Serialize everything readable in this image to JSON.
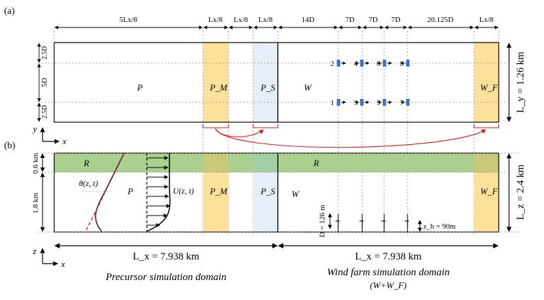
{
  "panel_a": {
    "tag": "(a)",
    "top_dims": [
      "5Lx/8",
      "Lx/8",
      "Lx/8",
      "Lx/8",
      "14D",
      "7D",
      "7D",
      "7D",
      "20.125D",
      "Lx/8"
    ],
    "left_dims": [
      "2.5D",
      "5D",
      "2.5D"
    ],
    "regions": [
      "P",
      "P_M",
      "P_S",
      "W",
      "W_F"
    ],
    "turbines_top": [
      "2",
      "4",
      "6",
      "8"
    ],
    "turbines_bottom": [
      "1",
      "3",
      "5",
      "7"
    ],
    "ly": "L_y = 1.26 km",
    "axes": [
      "y",
      "x"
    ]
  },
  "panel_b": {
    "tag": "(b)",
    "left_dims": [
      "0.6 km",
      "1.8 km"
    ],
    "regions": [
      "R",
      "R",
      "P",
      "P_M",
      "P_S",
      "W",
      "W_F"
    ],
    "theta_label": "θ(z, t)",
    "u_label": "U(z, t)",
    "rotor_d": "D = 126 m",
    "hub_height": "z_h = 90m",
    "lz": "L_z = 2.4 km",
    "axes": [
      "z",
      "x"
    ]
  },
  "bottom": {
    "lx_left": "L_x = 7.938 km",
    "lx_right": "L_x = 7.938 km",
    "precursor_caption": "Precursor simulation domain",
    "windfarm_caption": "Wind farm simulation domain",
    "windfarm_sub": "(W+W_F)"
  },
  "colors": {
    "yellow": "#fde19a",
    "blue": "#e6eef8",
    "green": "#a9d08e",
    "turbine": "#4472c4",
    "red": "#e01010",
    "profile": "#1a2a5a"
  }
}
